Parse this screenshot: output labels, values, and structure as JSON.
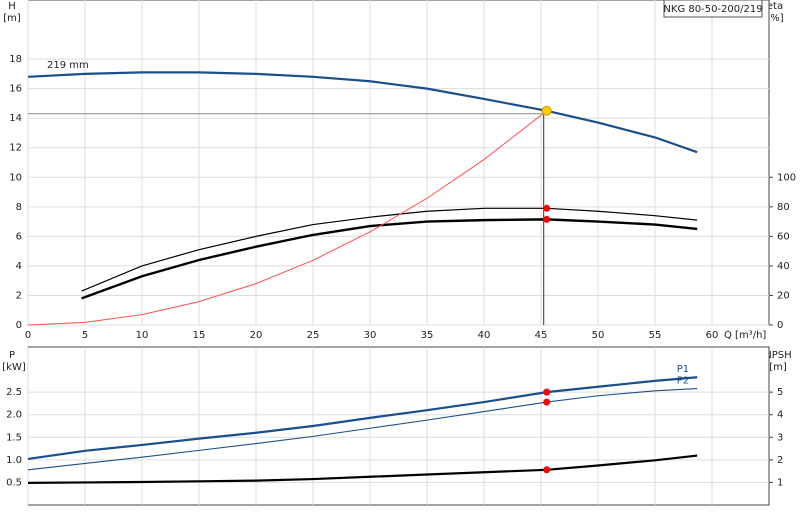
{
  "chart_data": [
    {
      "type": "line",
      "title": "NKG 80-50-200/219",
      "ylabel": [
        "H",
        "[m]"
      ],
      "y2label": [
        "eta",
        "[%]"
      ],
      "xlabel": "Q [m³/h]",
      "annotation": "219 mm",
      "xlim": [
        0,
        65
      ],
      "xticks": [
        0,
        5,
        10,
        15,
        20,
        25,
        30,
        35,
        40,
        45,
        50,
        55,
        60
      ],
      "ylim": [
        0,
        22
      ],
      "yticks": [
        0,
        2,
        4,
        6,
        8,
        10,
        12,
        14,
        16,
        18
      ],
      "y2lim": [
        0,
        220
      ],
      "y2ticks": [
        0,
        20,
        40,
        60,
        80,
        100
      ],
      "grid": true,
      "duty_x": 45.5,
      "series": [
        {
          "color": "#1a4f8b",
          "width": 2.2,
          "marker": "#ffcc00",
          "x": [
            0,
            5,
            10,
            15,
            20,
            25,
            30,
            35,
            40,
            45.5,
            50,
            55,
            58.7
          ],
          "values": [
            16.8,
            17.0,
            17.1,
            17.1,
            17.0,
            16.8,
            16.5,
            16.0,
            15.3,
            14.5,
            13.7,
            12.7,
            11.7
          ]
        },
        {
          "color": "#000000",
          "width": 1.2,
          "axis": "y2",
          "marker": "#ff0000",
          "x": [
            4.7,
            10,
            15,
            20,
            25,
            30,
            35,
            40,
            45.5,
            50,
            55,
            58.7
          ],
          "values": [
            23,
            40,
            51,
            60,
            68,
            73,
            77,
            79,
            79,
            77,
            74,
            71
          ]
        },
        {
          "color": "#000000",
          "width": 2.4,
          "axis": "y2",
          "marker": "#ff0000",
          "x": [
            4.7,
            10,
            15,
            20,
            25,
            30,
            35,
            40,
            45.5,
            50,
            55,
            58.7
          ],
          "values": [
            18,
            33,
            44,
            53,
            61,
            67,
            70,
            71,
            71.5,
            70,
            68,
            65
          ]
        },
        {
          "color": "#ff5050",
          "width": 1,
          "x": [
            0,
            5,
            10,
            15,
            20,
            25,
            30,
            35,
            40,
            45.5
          ],
          "values": [
            0,
            0.18,
            0.7,
            1.58,
            2.8,
            4.38,
            6.3,
            8.58,
            11.2,
            14.5
          ]
        }
      ]
    },
    {
      "type": "line",
      "ylabel": [
        "P",
        "[kW]"
      ],
      "y2label": [
        "NPSH",
        "[m]"
      ],
      "xlim": [
        0,
        65
      ],
      "xticks": [
        0,
        5,
        10,
        15,
        20,
        25,
        30,
        35,
        40,
        45,
        50,
        55,
        60
      ],
      "xtick_labels": false,
      "ylim": [
        0,
        3.5
      ],
      "yticks": [
        0.5,
        {
          "value": 1,
          "label": "1.0"
        },
        1.5,
        {
          "value": 2,
          "label": "2.0"
        },
        2.5
      ],
      "y2lim": [
        0,
        7
      ],
      "y2ticks": [
        1,
        2,
        3,
        4,
        5
      ],
      "grid": true,
      "duty_x": 45.5,
      "series": [
        {
          "name": "P1",
          "color": "#1a4f8b",
          "width": 2.2,
          "marker": "#ff0000",
          "x": [
            0,
            5,
            10,
            15,
            20,
            25,
            30,
            35,
            40,
            45.5,
            50,
            55,
            58.7
          ],
          "values": [
            1.02,
            1.2,
            1.33,
            1.47,
            1.6,
            1.75,
            1.93,
            2.1,
            2.28,
            2.5,
            2.62,
            2.75,
            2.83
          ]
        },
        {
          "name": "P2",
          "color": "#1a4f8b",
          "width": 1.1,
          "marker": "#ff0000",
          "x": [
            0,
            5,
            10,
            15,
            20,
            25,
            30,
            35,
            40,
            45.5,
            50,
            55,
            58.7
          ],
          "values": [
            0.78,
            0.92,
            1.06,
            1.21,
            1.36,
            1.52,
            1.7,
            1.88,
            2.07,
            2.28,
            2.42,
            2.53,
            2.58
          ]
        },
        {
          "color": "#000000",
          "width": 2.2,
          "axis": "y2",
          "marker": "#ff0000",
          "x": [
            0,
            5,
            10,
            15,
            20,
            25,
            30,
            35,
            40,
            45.5,
            50,
            55,
            58.7
          ],
          "values": [
            0.98,
            1.0,
            1.02,
            1.05,
            1.08,
            1.15,
            1.25,
            1.35,
            1.45,
            1.56,
            1.75,
            1.98,
            2.19
          ]
        }
      ]
    }
  ]
}
